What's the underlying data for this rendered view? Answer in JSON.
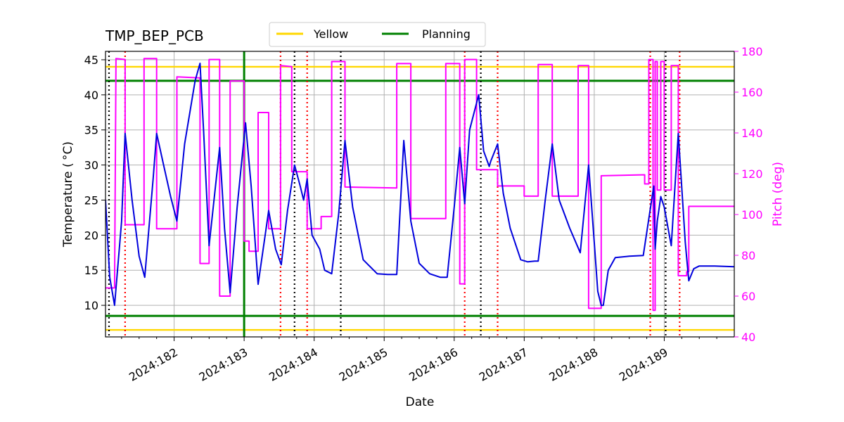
{
  "chart_data": {
    "type": "line",
    "title": "TMP_BEP_PCB",
    "xlabel": "Date",
    "ylabel_left": "Temperature ($^\\circ$C)",
    "ylabel_left_display": "Temperature ( °C)",
    "ylabel_right": "Pitch (deg)",
    "xlim": [
      181.02,
      190.0
    ],
    "ylim_left": [
      5.5,
      46.2
    ],
    "ylim_right": [
      40,
      180
    ],
    "grid": true,
    "legend_position": "top-center",
    "x_ticks": [
      {
        "value": 182,
        "label": "2024:182"
      },
      {
        "value": 183,
        "label": "2024:183"
      },
      {
        "value": 184,
        "label": "2024:184"
      },
      {
        "value": 185,
        "label": "2024:185"
      },
      {
        "value": 186,
        "label": "2024:186"
      },
      {
        "value": 187,
        "label": "2024:187"
      },
      {
        "value": 188,
        "label": "2024:188"
      },
      {
        "value": 189,
        "label": "2024:189"
      }
    ],
    "y_ticks_left": [
      10,
      15,
      20,
      25,
      30,
      35,
      40,
      45
    ],
    "y_ticks_right": [
      40,
      60,
      80,
      100,
      120,
      140,
      160,
      180
    ],
    "limit_lines": [
      {
        "name": "Yellow",
        "color": "#ffd700",
        "values": [
          44.0,
          6.5
        ]
      },
      {
        "name": "Planning",
        "color": "#008000",
        "values": [
          42.0,
          8.5
        ]
      }
    ],
    "planning_vertical": {
      "x": 183.0,
      "color": "#008000"
    },
    "black_dotted_x": [
      181.07,
      183.72,
      184.38,
      186.38,
      189.02
    ],
    "red_dotted_x": [
      181.3,
      183.52,
      183.9,
      186.15,
      186.62,
      188.8,
      189.22
    ],
    "series": [
      {
        "axis": "left",
        "color": "#0000dd",
        "x": [
          181.02,
          181.08,
          181.15,
          181.25,
          181.3,
          181.4,
          181.5,
          181.58,
          181.7,
          181.75,
          181.85,
          181.95,
          182.04,
          182.15,
          182.3,
          182.37,
          182.42,
          182.5,
          182.65,
          182.72,
          182.8,
          182.9,
          183.02,
          183.1,
          183.2,
          183.3,
          183.35,
          183.45,
          183.53,
          183.62,
          183.72,
          183.8,
          183.85,
          183.9,
          183.97,
          184.08,
          184.15,
          184.25,
          184.35,
          184.44,
          184.55,
          184.7,
          184.9,
          185.05,
          185.18,
          185.28,
          185.38,
          185.5,
          185.65,
          185.8,
          185.9,
          186.0,
          186.08,
          186.15,
          186.22,
          186.35,
          186.42,
          186.5,
          186.52,
          186.62,
          186.7,
          186.8,
          186.95,
          187.05,
          187.15,
          187.2,
          187.3,
          187.4,
          187.5,
          187.65,
          187.8,
          187.92,
          188.0,
          188.05,
          188.1,
          188.13,
          188.2,
          188.3,
          188.5,
          188.7,
          188.85,
          188.87,
          188.9,
          188.95,
          189.0,
          189.1,
          189.2,
          189.3,
          189.35,
          189.42,
          189.5,
          189.7,
          190.0
        ],
        "y": [
          25,
          14,
          10,
          22,
          34.5,
          25,
          17,
          14,
          28,
          34.5,
          30,
          25.5,
          22,
          33,
          42,
          44.5,
          35,
          18.5,
          32.5,
          21,
          11.8,
          24,
          36,
          27,
          13,
          20,
          23.5,
          18,
          15.8,
          23.5,
          30,
          27,
          25,
          28,
          20,
          18,
          15,
          14.5,
          23,
          33.5,
          24,
          16.5,
          14.5,
          14.4,
          14.4,
          33.5,
          22,
          16,
          14.5,
          14,
          14,
          24,
          32.5,
          24.5,
          35,
          40,
          32,
          29.8,
          30.5,
          33,
          26,
          21,
          16.5,
          16.2,
          16.3,
          16.3,
          25,
          33,
          25,
          21,
          17.5,
          30,
          19,
          12,
          10,
          10,
          15,
          16.8,
          17,
          17.1,
          27,
          18,
          22,
          25.5,
          24,
          18.5,
          34.5,
          19,
          13.5,
          15.2,
          15.6,
          15.6,
          15.5
        ]
      },
      {
        "axis": "right",
        "color": "#ff00ff",
        "x": [
          181.0,
          181.15,
          181.17,
          181.3,
          181.3,
          181.57,
          181.57,
          181.75,
          181.75,
          182.04,
          182.04,
          182.37,
          182.37,
          182.5,
          182.5,
          182.65,
          182.65,
          182.8,
          182.8,
          183.0,
          183.0,
          183.07,
          183.07,
          183.2,
          183.2,
          183.35,
          183.35,
          183.52,
          183.52,
          183.68,
          183.68,
          183.9,
          183.9,
          184.1,
          184.1,
          184.25,
          184.25,
          184.44,
          184.44,
          185.18,
          185.18,
          185.38,
          185.38,
          185.88,
          185.88,
          186.08,
          186.08,
          186.15,
          186.15,
          186.32,
          186.32,
          186.62,
          186.62,
          187.0,
          187.0,
          187.2,
          187.2,
          187.4,
          187.4,
          187.77,
          187.77,
          187.92,
          187.92,
          188.1,
          188.1,
          188.72,
          188.72,
          188.78,
          188.78,
          188.84,
          188.84,
          188.87,
          188.87,
          188.9,
          188.9,
          188.95,
          188.95,
          189.0,
          189.0,
          189.1,
          189.1,
          189.2,
          189.2,
          189.32,
          189.32,
          189.35,
          189.35,
          190.0
        ],
        "y": [
          64,
          64,
          176.5,
          176,
          95,
          95,
          176.5,
          176.5,
          93,
          93,
          167.5,
          167,
          76,
          76,
          176,
          176,
          60,
          60,
          165.5,
          165.5,
          87,
          87,
          82,
          82,
          150,
          150,
          93,
          93,
          173,
          172.5,
          121,
          121,
          93,
          93,
          99,
          99,
          175,
          175,
          113.5,
          113,
          174,
          174,
          98,
          98,
          174,
          174,
          66,
          66,
          176,
          176,
          122,
          122,
          114,
          114,
          109,
          109,
          173.5,
          173.5,
          109,
          109,
          173,
          173,
          54,
          54,
          119,
          119.5,
          115,
          115,
          176,
          176,
          53,
          53,
          175,
          175,
          112,
          112,
          175,
          175,
          112,
          112,
          173,
          173,
          70,
          70,
          72,
          72,
          104,
          104
        ]
      }
    ]
  },
  "legend": {
    "items": [
      {
        "label": "Yellow",
        "color": "#ffd700"
      },
      {
        "label": "Planning",
        "color": "#008000"
      }
    ]
  }
}
